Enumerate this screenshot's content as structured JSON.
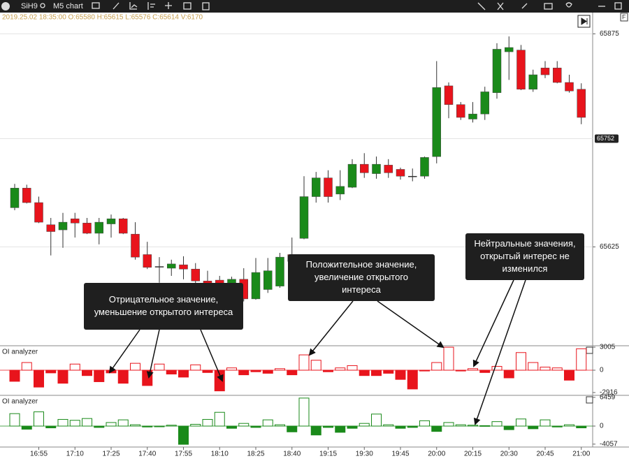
{
  "toolbar": {
    "symbol": "SiH9",
    "timeframe": "M5 chart"
  },
  "info": "2019.25.02 18:35:00 O:65580 H:65615 L:65576 C:65614 V:6170",
  "annotations": [
    {
      "lines": [
        "Отрицательное значение,",
        "уменьшение открытого интереса"
      ]
    },
    {
      "lines": [
        "Положительное значение,",
        "увеличение открытого",
        "интереса"
      ]
    },
    {
      "lines": [
        "Нейтральные значения,",
        "открытый интерес не",
        "изменился"
      ]
    }
  ],
  "chart_data": [
    {
      "type": "candlestick",
      "categories": [
        null,
        null,
        "16:55",
        null,
        null,
        "17:10",
        null,
        null,
        "17:25",
        null,
        null,
        "17:40",
        null,
        null,
        "17:55",
        null,
        null,
        "18:10",
        null,
        null,
        "18:25",
        null,
        null,
        "18:40",
        null,
        null,
        "19:15",
        null,
        null,
        "19:30",
        null,
        null,
        "19:45",
        null,
        null,
        "20:00",
        null,
        null,
        "20:15",
        null,
        null,
        "20:30",
        null,
        null,
        "20:45",
        null,
        null,
        "21:00"
      ],
      "open": [
        65671,
        65694,
        65677,
        65651,
        65645,
        65658,
        65653,
        65641,
        65652,
        65658,
        65640,
        65616,
        65602,
        65600,
        65604,
        65599,
        65585,
        65586,
        65564,
        65587,
        65564,
        65575,
        65579,
        65616,
        65635,
        65684,
        65706,
        65687,
        65695,
        65722,
        65711,
        65721,
        65716,
        65708,
        65708,
        65731,
        65814,
        65792,
        65775,
        65781,
        65806,
        65854,
        65856,
        65810,
        65835,
        65835,
        65818,
        65810
      ],
      "high": [
        65699,
        65698,
        65684,
        65659,
        65665,
        65665,
        65659,
        65659,
        65663,
        65659,
        65654,
        65631,
        65613,
        65610,
        65614,
        65606,
        65597,
        65591,
        65590,
        65600,
        65612,
        65612,
        65618,
        65636,
        65708,
        65713,
        65715,
        65715,
        65728,
        65735,
        65731,
        65728,
        65718,
        65717,
        65731,
        65843,
        65818,
        65795,
        65795,
        65813,
        65864,
        65872,
        65862,
        65833,
        65843,
        65843,
        65827,
        65817
      ],
      "low": [
        65668,
        65676,
        65653,
        65615,
        65624,
        65636,
        65640,
        65628,
        65636,
        65640,
        65610,
        65599,
        65583,
        65591,
        65587,
        65579,
        65571,
        65554,
        65563,
        65561,
        65563,
        65571,
        65577,
        65607,
        65634,
        65677,
        65677,
        65680,
        65694,
        65706,
        65705,
        65706,
        65704,
        65702,
        65705,
        65723,
        65776,
        65774,
        65771,
        65774,
        65799,
        65821,
        65809,
        65807,
        65823,
        65817,
        65806,
        65769
      ],
      "close": [
        65694,
        65677,
        65654,
        65643,
        65654,
        65653,
        65641,
        65654,
        65658,
        65641,
        65613,
        65601,
        65602,
        65605,
        65599,
        65585,
        65572,
        65563,
        65587,
        65564,
        65595,
        65597,
        65613,
        65608,
        65684,
        65706,
        65684,
        65696,
        65722,
        65712,
        65722,
        65712,
        65708,
        65708,
        65730,
        65812,
        65792,
        65777,
        65781,
        65807,
        65857,
        65859,
        65810,
        65827,
        65827,
        65818,
        65808,
        65777
      ],
      "up_color": "#1a8a1a",
      "down_color": "#e8141c",
      "ylim": [
        65509,
        65900
      ],
      "yticks": [
        65625,
        65875
      ],
      "last_price": 65752,
      "grid": true
    },
    {
      "type": "bar",
      "title": "OI analyzer",
      "color": "#e8141c",
      "values": [
        -1450,
        1000,
        -2200,
        -350,
        -1700,
        800,
        -700,
        -1500,
        -350,
        -1700,
        900,
        -2000,
        800,
        -500,
        -900,
        700,
        -300,
        -2700,
        300,
        -600,
        -200,
        -400,
        200,
        -600,
        2000,
        1300,
        -200,
        300,
        600,
        -700,
        -700,
        -400,
        -1200,
        -2450,
        -100,
        1000,
        3000,
        -100,
        200,
        -300,
        500,
        -1000,
        2300,
        1000,
        400,
        300,
        -1300,
        2800
      ],
      "ylim": [
        -3280,
        3190
      ],
      "yticks": [
        -2916,
        0,
        3005
      ]
    },
    {
      "type": "bar",
      "title": "OI analyzer",
      "color": "#1a8a1a",
      "values": [
        2800,
        -700,
        3200,
        -400,
        1500,
        1300,
        1700,
        -300,
        800,
        1400,
        300,
        -200,
        -100,
        200,
        -4100,
        400,
        1500,
        3100,
        -500,
        600,
        -300,
        1400,
        300,
        -1300,
        6300,
        -2000,
        -300,
        -1400,
        -500,
        600,
        2700,
        300,
        -500,
        -300,
        1200,
        -1200,
        800,
        300,
        200,
        100,
        1000,
        -800,
        1600,
        -600,
        1400,
        -200,
        300,
        -400
      ],
      "ylim": [
        -4710,
        6910
      ],
      "yticks": [
        -4057,
        0,
        6459
      ]
    }
  ]
}
